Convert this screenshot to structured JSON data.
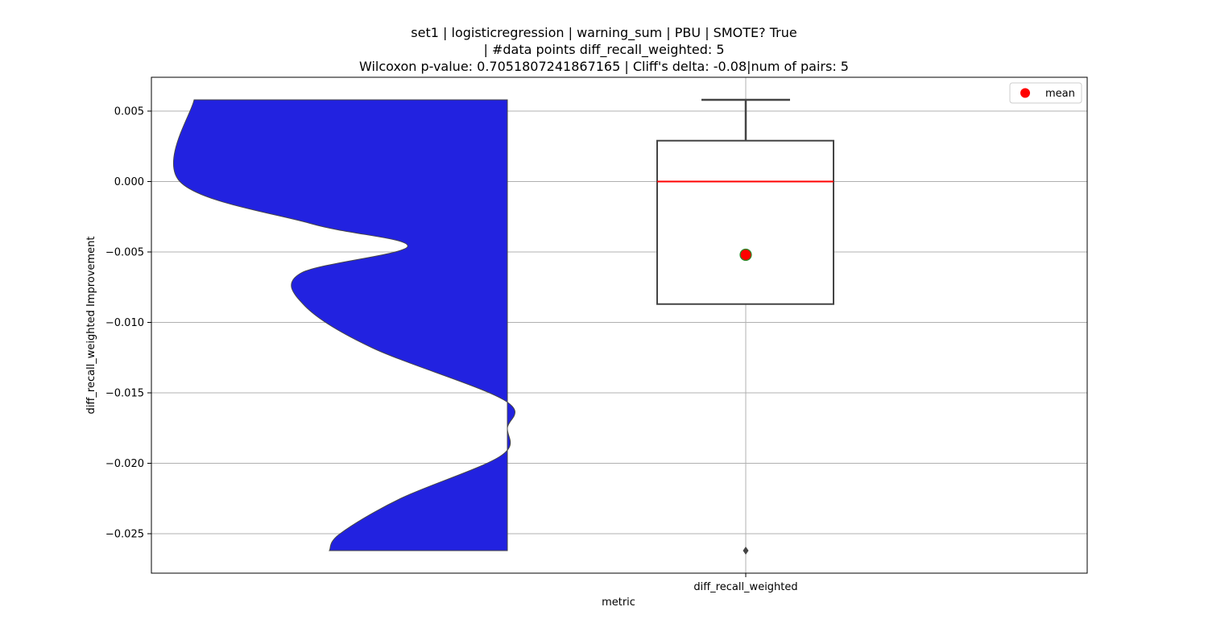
{
  "chart_data": {
    "type": "violin+box",
    "title_lines": [
      "set1 | logisticregression | warning_sum | PBU | SMOTE? True",
      "| #data points diff_recall_weighted: 5",
      "Wilcoxon p-value: 0.7051807241867165 | Cliff's delta: -0.08|num of pairs: 5"
    ],
    "xlabel": "metric",
    "ylabel": "diff_recall_weighted Improvement",
    "categories": [
      "diff_recall_weighted"
    ],
    "ylim": [
      -0.0278,
      0.0074
    ],
    "yticks": [
      0.005,
      0.0,
      -0.005,
      -0.01,
      -0.015,
      -0.02,
      -0.025
    ],
    "ytick_labels": [
      "0.005",
      "0.000",
      "−0.005",
      "−0.010",
      "−0.015",
      "−0.020",
      "−0.025"
    ],
    "grid": true,
    "legend": {
      "position": "top-right",
      "entries": [
        {
          "label": "mean",
          "marker": "circle",
          "color": "#ff0000"
        }
      ]
    },
    "violin": {
      "color": "#2222e0",
      "y_min": -0.0262,
      "y_max": 0.0058,
      "points": [
        {
          "y": 0.0058,
          "w": 0.88
        },
        {
          "y": 0.0,
          "w": 0.92
        },
        {
          "y": -0.003,
          "w": 0.55
        },
        {
          "y": -0.0046,
          "w": 0.28
        },
        {
          "y": -0.0065,
          "w": 0.58
        },
        {
          "y": -0.0088,
          "w": 0.57
        },
        {
          "y": -0.0118,
          "w": 0.38
        },
        {
          "y": -0.0155,
          "w": 0.01
        },
        {
          "y": -0.0175,
          "w": 0.0
        },
        {
          "y": -0.0195,
          "w": 0.02
        },
        {
          "y": -0.0225,
          "w": 0.3
        },
        {
          "y": -0.025,
          "w": 0.47
        },
        {
          "y": -0.0262,
          "w": 0.5
        }
      ]
    },
    "box": {
      "q1": -0.0087,
      "median": 0.0,
      "q3": 0.0029,
      "whisker_low": -0.0087,
      "whisker_high": 0.0058,
      "mean": -0.0052,
      "outliers": [
        -0.0262
      ],
      "median_color": "#ff0000",
      "mean_color": "#ff0000"
    }
  }
}
